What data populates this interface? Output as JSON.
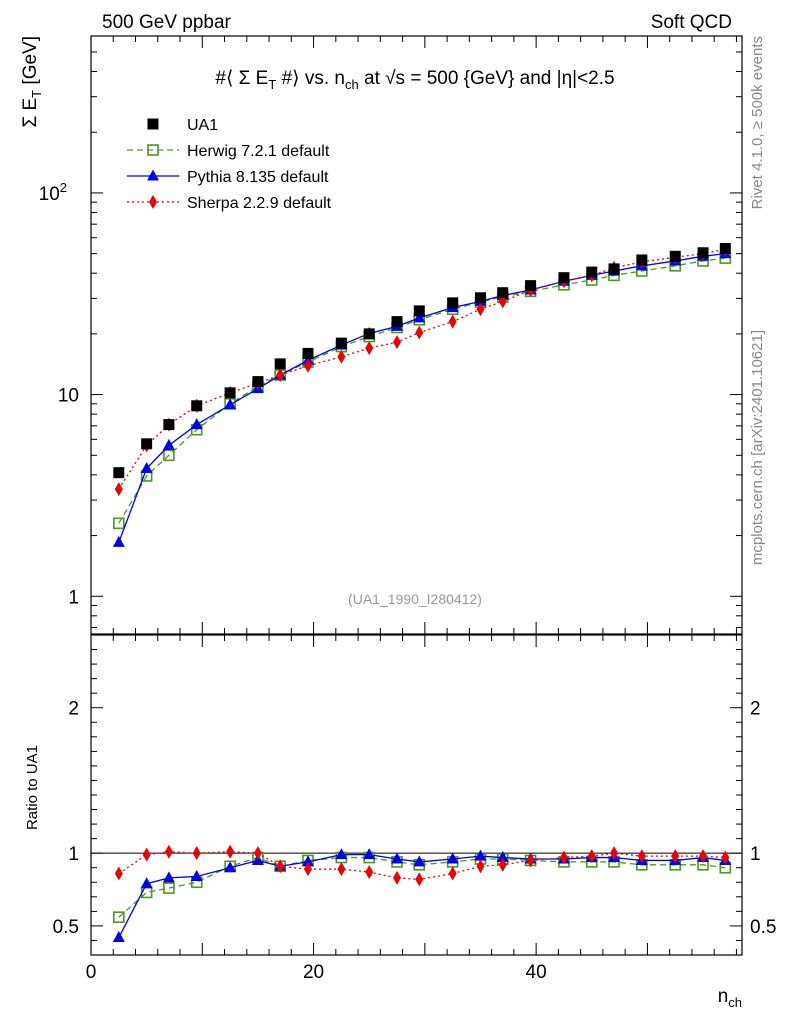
{
  "header": {
    "left": "500 GeV ppbar",
    "right": "Soft QCD"
  },
  "side": {
    "rivet": "Rivet 4.1.0, ≥ 500k events",
    "mcplots": "mcplots.cern.ch [arXiv:2401.10621]"
  },
  "chart_data": {
    "type": "scatter",
    "title": "#⟨ Σ E_T #⟩ vs. n_ch at √s = 500 {GeV} and |η|<2.5",
    "title_parts": {
      "a": "#⟨ Σ E",
      "a_sub": "T",
      "b": " #⟩ vs. n",
      "b_sub": "ch",
      "c": " at √s = 500 {GeV} and |η|<2.5"
    },
    "ylabel_main": "Σ E_T [GeV]",
    "ylabel_main_parts": {
      "a": "Σ E",
      "sub": "T",
      "b": " [GeV]"
    },
    "ylabel_ratio": "Ratio to UA1",
    "xlabel": "n_ch",
    "xlabel_parts": {
      "a": "n",
      "sub": "ch"
    },
    "watermark": "(UA1_1990_I280412)",
    "xlim": [
      0,
      58.5
    ],
    "ylim_main": [
      0.65,
      600
    ],
    "ylim_ratio": [
      0.3,
      2.5
    ],
    "yscale_main": "log",
    "x_ticks": [
      0,
      20,
      40
    ],
    "y_ticks_main": [
      {
        "v": 1,
        "label": "1"
      },
      {
        "v": 10,
        "label": "10"
      },
      {
        "v": 100,
        "label": "10",
        "sup": "2"
      }
    ],
    "y_ticks_ratio": [
      {
        "v": 0.5,
        "label": "0.5"
      },
      {
        "v": 1,
        "label": "1"
      },
      {
        "v": 2,
        "label": "2"
      }
    ],
    "legend_position": "top-left",
    "x": [
      2.5,
      5,
      7,
      9.5,
      12.5,
      15,
      17,
      19.5,
      22.5,
      25,
      27.5,
      29.5,
      32.5,
      35,
      37,
      39.5,
      42.5,
      45,
      47,
      49.5,
      52.5,
      55,
      57
    ],
    "series": [
      {
        "name": "UA1",
        "style": "data",
        "marker": "square",
        "color": "#000000",
        "values": [
          4.1,
          5.7,
          7.1,
          8.8,
          10.2,
          11.6,
          14.2,
          16.0,
          18.0,
          20.0,
          23.0,
          26.0,
          28.5,
          30.2,
          32.0,
          34.7,
          38.0,
          40.5,
          42.0,
          46.5,
          48.5,
          50.5,
          53.0
        ],
        "ratio": [
          1,
          1,
          1,
          1,
          1,
          1,
          1,
          1,
          1,
          1,
          1,
          1,
          1,
          1,
          1,
          1,
          1,
          1,
          1,
          1,
          1,
          1,
          1
        ]
      },
      {
        "name": "Herwig 7.2.1 default",
        "style": "dashed",
        "marker": "open-square",
        "color": "#4a9a1a",
        "values": [
          2.3,
          3.95,
          5.0,
          6.7,
          9.0,
          11.0,
          12.5,
          14.5,
          17.3,
          19.4,
          21.5,
          23.5,
          26.5,
          28.8,
          30.5,
          32.5,
          35.0,
          37.0,
          39.0,
          41.0,
          43.5,
          46.0,
          47.5
        ],
        "ratio": [
          0.56,
          0.73,
          0.76,
          0.8,
          0.91,
          0.97,
          0.91,
          0.95,
          0.97,
          0.97,
          0.94,
          0.92,
          0.94,
          0.96,
          0.96,
          0.95,
          0.94,
          0.94,
          0.94,
          0.92,
          0.92,
          0.92,
          0.9
        ]
      },
      {
        "name": "Pythia 8.135 default",
        "style": "solid",
        "marker": "triangle",
        "color": "#0000ee",
        "values": [
          1.85,
          4.3,
          5.6,
          7.1,
          8.9,
          10.7,
          12.5,
          14.8,
          17.6,
          20.1,
          21.8,
          24.0,
          27.0,
          29.0,
          31.0,
          33.0,
          36.5,
          39.0,
          41.0,
          43.5,
          46.0,
          48.5,
          50.0
        ],
        "ratio": [
          0.42,
          0.79,
          0.83,
          0.84,
          0.9,
          0.95,
          0.91,
          0.94,
          0.99,
          0.99,
          0.96,
          0.94,
          0.96,
          0.98,
          0.97,
          0.96,
          0.96,
          0.97,
          0.97,
          0.95,
          0.95,
          0.97,
          0.95
        ]
      },
      {
        "name": "Sherpa 2.2.9 default",
        "style": "dotted",
        "marker": "diamond",
        "color": "#ee0000",
        "values": [
          3.4,
          5.6,
          7.1,
          8.8,
          10.2,
          11.4,
          12.5,
          13.9,
          15.4,
          17.0,
          18.2,
          20.3,
          23.0,
          26.5,
          29.0,
          33.0,
          36.5,
          39.0,
          42.5,
          45.5,
          48.0,
          50.0,
          52.5
        ],
        "ratio": [
          0.86,
          0.99,
          1.01,
          1.0,
          1.01,
          1.0,
          0.91,
          0.89,
          0.89,
          0.87,
          0.83,
          0.82,
          0.86,
          0.91,
          0.92,
          0.95,
          0.97,
          0.98,
          1.0,
          0.98,
          0.98,
          0.98,
          0.97
        ]
      }
    ]
  }
}
